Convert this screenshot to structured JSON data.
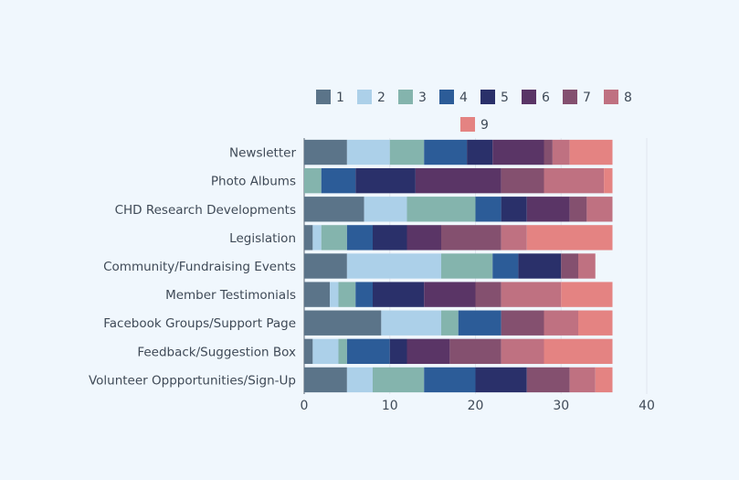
{
  "chart_data": {
    "type": "bar",
    "orientation": "horizontal",
    "stacked": true,
    "categories": [
      "Newsletter",
      "Photo Albums",
      "CHD Research Developments",
      "Legislation",
      "Community/Fundraising Events",
      "Member Testimonials",
      "Facebook Groups/Support Page",
      "Feedback/Suggestion Box",
      "Volunteer Oppportunities/Sign-Up"
    ],
    "series": [
      {
        "name": "1",
        "color": "#5b7489",
        "values": [
          5,
          0,
          7,
          1,
          5,
          3,
          9,
          1,
          5
        ]
      },
      {
        "name": "2",
        "color": "#acd0e9",
        "values": [
          5,
          0,
          5,
          1,
          11,
          1,
          7,
          3,
          3
        ]
      },
      {
        "name": "3",
        "color": "#84b4ad",
        "values": [
          4,
          2,
          8,
          3,
          6,
          2,
          2,
          1,
          6
        ]
      },
      {
        "name": "4",
        "color": "#2c5c98",
        "values": [
          5,
          4,
          3,
          3,
          3,
          2,
          5,
          5,
          6
        ]
      },
      {
        "name": "5",
        "color": "#2a306a",
        "values": [
          3,
          7,
          3,
          4,
          5,
          6,
          0,
          2,
          6
        ]
      },
      {
        "name": "6",
        "color": "#5a3566",
        "values": [
          6,
          10,
          5,
          4,
          0,
          6,
          0,
          5,
          0
        ]
      },
      {
        "name": "7",
        "color": "#84506f",
        "values": [
          1,
          5,
          2,
          7,
          2,
          3,
          5,
          6,
          5
        ]
      },
      {
        "name": "8",
        "color": "#bf7181",
        "values": [
          2,
          7,
          3,
          3,
          2,
          7,
          4,
          5,
          3
        ]
      },
      {
        "name": "9",
        "color": "#e48382",
        "values": [
          5,
          1,
          0,
          10,
          0,
          6,
          4,
          8,
          2
        ]
      }
    ],
    "xlim": [
      0,
      40
    ],
    "xticks": [
      0,
      10,
      20,
      30,
      40
    ],
    "tick_labels": [
      "0",
      "10",
      "20",
      "30",
      "40"
    ],
    "xlabel": "",
    "ylabel": "",
    "title": "",
    "grid": true,
    "legend": {
      "position": "top",
      "orientation": "horizontal"
    }
  }
}
